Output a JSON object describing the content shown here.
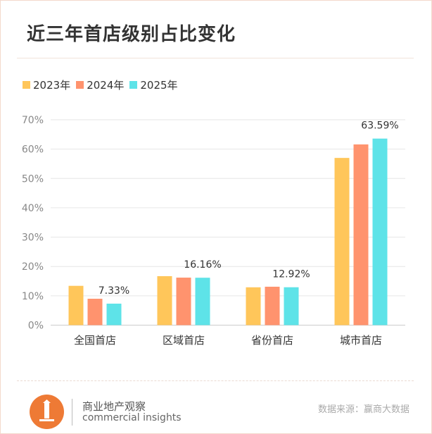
{
  "chart_data": {
    "type": "bar",
    "title": "近三年首店级别占比变化",
    "categories": [
      "全国首店",
      "区域首店",
      "省份首店",
      "城市首店"
    ],
    "series": [
      {
        "name": "2023年",
        "color": "#ffc65a",
        "values": [
          13.4,
          16.7,
          12.9,
          57.0
        ]
      },
      {
        "name": "2024年",
        "color": "#ff936e",
        "values": [
          9.0,
          16.2,
          13.1,
          61.6
        ]
      },
      {
        "name": "2025年",
        "color": "#5ee3e8",
        "values": [
          7.33,
          16.16,
          12.92,
          63.59
        ]
      }
    ],
    "data_labels": [
      "7.33%",
      "16.16%",
      "12.92%",
      "63.59%"
    ],
    "yticks": [
      "0%",
      "10%",
      "20%",
      "30%",
      "40%",
      "50%",
      "60%",
      "70%"
    ],
    "ylim": [
      0,
      70
    ],
    "grid": true,
    "legend": "top-left"
  },
  "footer": {
    "brand_cn": "商业地产观察",
    "brand_en": "commercial insights",
    "source": "数据来源：赢商大数据"
  }
}
